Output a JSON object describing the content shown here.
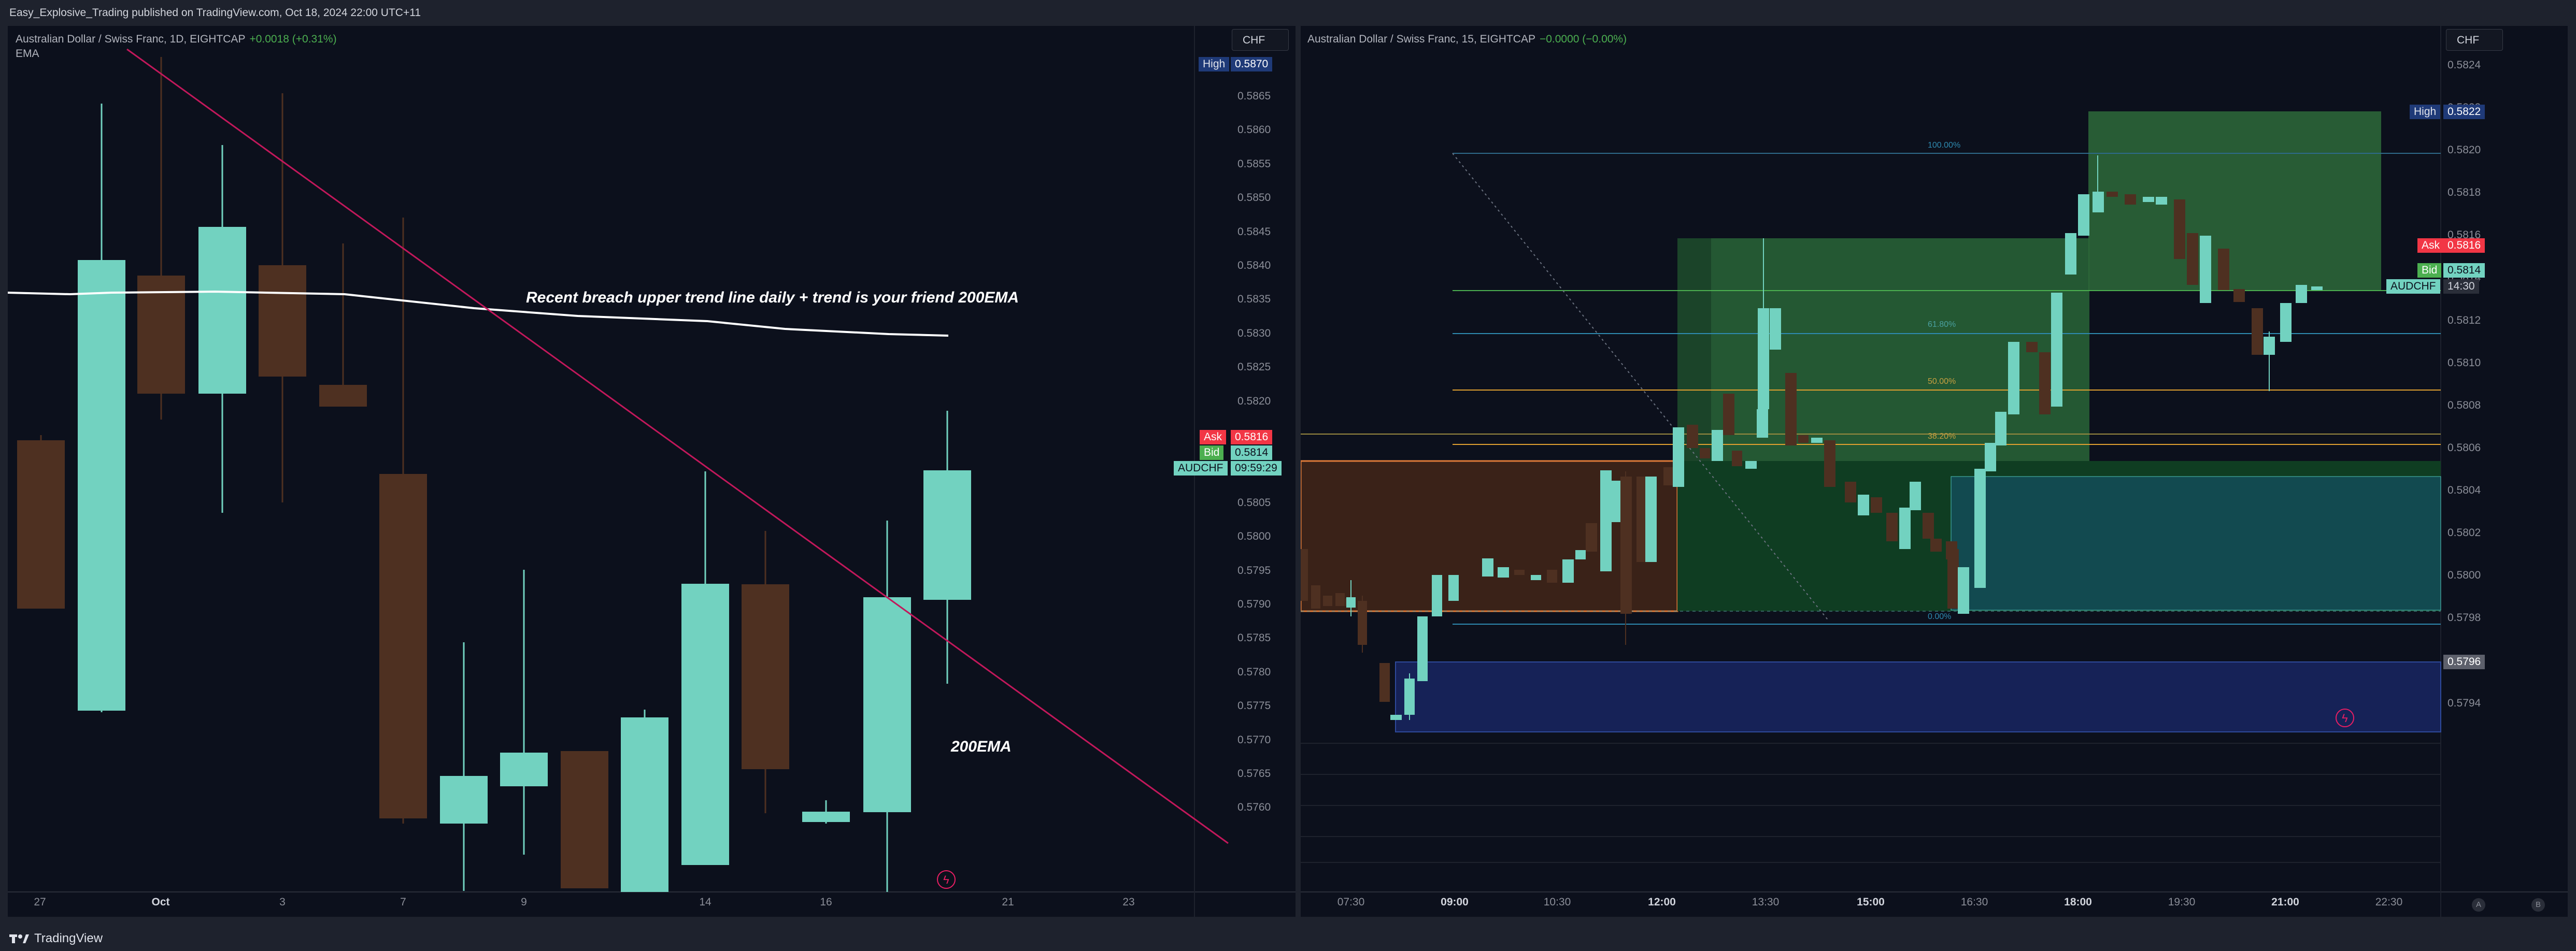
{
  "header": {
    "publisher_text": "Easy_Explosive_Trading published on TradingView.com, Oct 18, 2024 22:00 UTC+11"
  },
  "footer": {
    "brand": "TradingView",
    "logo_icon": "tradingview-logo-icon"
  },
  "left_chart": {
    "legend_title": "Australian Dollar / Swiss Franc, 1D, EIGHTCAP",
    "legend_change": "+0.0018 (+0.31%)",
    "indicator": "EMA",
    "currency": "CHF",
    "price_ticks": [
      "0.5865",
      "0.5860",
      "0.5855",
      "0.5850",
      "0.5845",
      "0.5840",
      "0.5835",
      "0.5830",
      "0.5825",
      "0.5820",
      "0.5815",
      "0.5810",
      "0.5805",
      "0.5800",
      "0.5795",
      "0.5790",
      "0.5785",
      "0.5780",
      "0.5775",
      "0.5770",
      "0.5765",
      "0.5760"
    ],
    "time_ticks": [
      {
        "label": "27",
        "bold": false
      },
      {
        "label": "Oct",
        "bold": true
      },
      {
        "label": "3",
        "bold": false
      },
      {
        "label": "7",
        "bold": false
      },
      {
        "label": "9",
        "bold": false
      },
      {
        "label": "14",
        "bold": false
      },
      {
        "label": "16",
        "bold": false
      },
      {
        "label": "21",
        "bold": false
      },
      {
        "label": "23",
        "bold": false
      }
    ],
    "high": {
      "label": "High",
      "value": "0.5870"
    },
    "ask": {
      "label": "Ask",
      "value": "0.5816"
    },
    "bid": {
      "label": "Bid",
      "value": "0.5814"
    },
    "symbol": {
      "label": "AUDCHF",
      "value": "09:59:29"
    },
    "annotations": [
      "Recent breach upper trend line daily + trend is your friend 200EMA",
      "200EMA"
    ],
    "colors": {
      "up": "#72d2c0",
      "down": "#4e3021",
      "trendline": "#c2185b",
      "ema": "#ffffff",
      "ask": "#f23645",
      "bid": "#4caf50",
      "high": "#1f3a78"
    }
  },
  "right_chart": {
    "legend_title": "Australian Dollar / Swiss Franc, 15, EIGHTCAP",
    "legend_change": "−0.0000 (−0.00%)",
    "currency": "CHF",
    "price_ticks": [
      "0.5824",
      "0.5822",
      "0.5820",
      "0.5818",
      "0.5816",
      "0.5814",
      "0.5812",
      "0.5810",
      "0.5808",
      "0.5806",
      "0.5804",
      "0.5802",
      "0.5800",
      "0.5798",
      "0.5796",
      "0.5794"
    ],
    "time_ticks": [
      {
        "label": "07:30",
        "bold": false
      },
      {
        "label": "09:00",
        "bold": true
      },
      {
        "label": "10:30",
        "bold": false
      },
      {
        "label": "12:00",
        "bold": true
      },
      {
        "label": "13:30",
        "bold": false
      },
      {
        "label": "15:00",
        "bold": true
      },
      {
        "label": "16:30",
        "bold": false
      },
      {
        "label": "18:00",
        "bold": true
      },
      {
        "label": "19:30",
        "bold": false
      },
      {
        "label": "21:00",
        "bold": true
      },
      {
        "label": "22:30",
        "bold": false
      }
    ],
    "high": {
      "label": "High",
      "value": "0.5822"
    },
    "ask": {
      "label": "Ask",
      "value": "0.5816"
    },
    "bid": {
      "label": "Bid",
      "value": "0.5814"
    },
    "symbol": {
      "label": "AUDCHF",
      "value": "14:30"
    },
    "level_tag": "0.5796",
    "fib_labels": [
      "100.00%",
      "61.80%",
      "50.00%",
      "38.20%",
      "0.00%"
    ],
    "colors": {
      "up": "#72d2c0",
      "down": "#4e3021"
    }
  },
  "scale_buttons": [
    "A",
    "B"
  ]
}
